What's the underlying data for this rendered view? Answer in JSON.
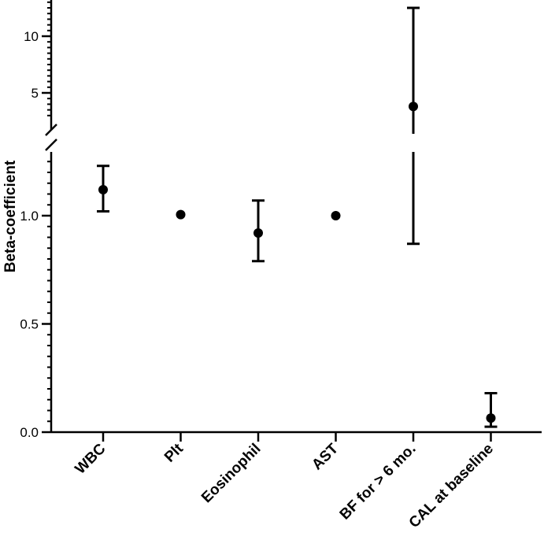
{
  "chart_data": {
    "type": "scatter",
    "ylabel": "Beta-coefficient",
    "broken_axis": true,
    "axis_segments": [
      {
        "range": [
          0,
          1.3
        ],
        "ticks": [
          0.0,
          0.5,
          1.0
        ],
        "tick_labels": [
          "0.0",
          "0.5",
          "1.0"
        ],
        "minor_step": 0.05
      },
      {
        "range": [
          3,
          13
        ],
        "ticks": [
          5,
          10
        ],
        "tick_labels": [
          "5",
          "10"
        ],
        "minor_step": 0.5
      }
    ],
    "categories": [
      "WBC",
      "Plt",
      "Eosinophil",
      "AST",
      "BF for > 6 mo.",
      "CAL at baseline"
    ],
    "points": [
      {
        "category": "WBC",
        "value": 1.12,
        "lower": 1.02,
        "upper": 1.23
      },
      {
        "category": "Plt",
        "value": 1.005,
        "lower": null,
        "upper": null
      },
      {
        "category": "Eosinophil",
        "value": 0.92,
        "lower": 0.79,
        "upper": 1.07
      },
      {
        "category": "AST",
        "value": 1.0,
        "lower": null,
        "upper": null
      },
      {
        "category": "BF for > 6 mo.",
        "value": 3.8,
        "lower": 0.87,
        "upper": 12.5
      },
      {
        "category": "CAL at baseline",
        "value": 0.065,
        "lower": 0.025,
        "upper": 0.18
      }
    ]
  }
}
